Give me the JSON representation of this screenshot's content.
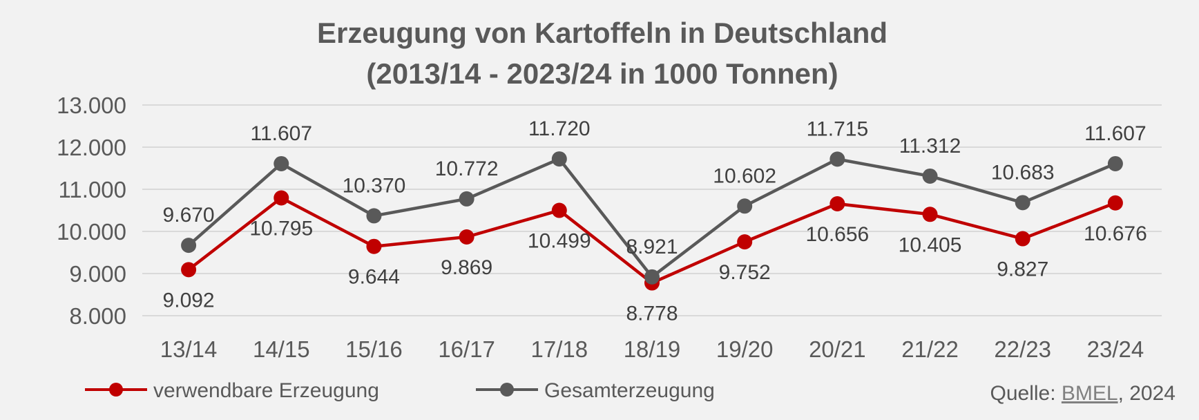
{
  "chart_data": {
    "type": "line",
    "title": "Erzeugung von Kartoffeln in Deutschland",
    "subtitle": "(2013/14 - 2023/24 in 1000 Tonnen)",
    "categories": [
      "13/14",
      "14/15",
      "15/16",
      "16/17",
      "17/18",
      "18/19",
      "19/20",
      "20/21",
      "21/22",
      "22/23",
      "23/24"
    ],
    "ylim": [
      8000,
      13000
    ],
    "yticks": [
      8000,
      9000,
      10000,
      11000,
      12000,
      13000
    ],
    "ytick_labels": [
      "8.000",
      "9.000",
      "10.000",
      "11.000",
      "12.000",
      "13.000"
    ],
    "grid": true,
    "legend_position": "bottom-left",
    "series": [
      {
        "name": "verwendbare Erzeugung",
        "color": "#c00000",
        "values": [
          9092,
          10795,
          9644,
          9869,
          10499,
          8778,
          9752,
          10656,
          10405,
          9827,
          10676
        ],
        "labels": [
          "9.092",
          "10.795",
          "9.644",
          "9.869",
          "10.499",
          "8.778",
          "9.752",
          "10.656",
          "10.405",
          "9.827",
          "10.676"
        ],
        "label_placement": "below"
      },
      {
        "name": "Gesamterzeugung",
        "color": "#595959",
        "values": [
          9670,
          11607,
          10370,
          10772,
          11720,
          8921,
          10602,
          11715,
          11312,
          10683,
          11607
        ],
        "labels": [
          "9.670",
          "11.607",
          "10.370",
          "10.772",
          "11.720",
          "8.921",
          "10.602",
          "11.715",
          "11.312",
          "10.683",
          "11.607"
        ],
        "label_placement": "above"
      }
    ],
    "source": {
      "prefix": "Quelle: ",
      "link": "BMEL",
      "suffix": ", 2024"
    }
  }
}
